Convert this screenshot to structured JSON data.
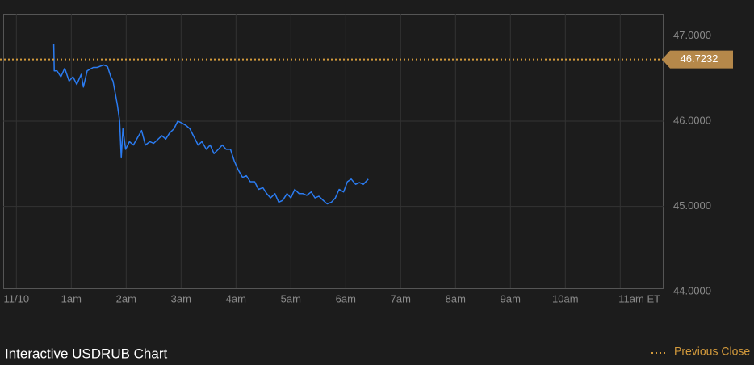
{
  "chart_data": {
    "type": "line",
    "title": "Interactive USDRUB Chart",
    "color": "#2b7cf2",
    "x": [
      0.68,
      0.69,
      0.74,
      0.81,
      0.88,
      0.96,
      1.03,
      1.1,
      1.18,
      1.22,
      1.29,
      1.4,
      1.47,
      1.59,
      1.66,
      1.72,
      1.76,
      1.84,
      1.88,
      1.91,
      1.94,
      1.99,
      2.06,
      2.13,
      2.21,
      2.28,
      2.35,
      2.43,
      2.5,
      2.65,
      2.72,
      2.79,
      2.87,
      2.94,
      3.01,
      3.09,
      3.16,
      3.24,
      3.31,
      3.38,
      3.46,
      3.53,
      3.6,
      3.68,
      3.75,
      3.82,
      3.9,
      3.97,
      4.04,
      4.12,
      4.19,
      4.26,
      4.34,
      4.41,
      4.49,
      4.56,
      4.63,
      4.71,
      4.78,
      4.85,
      4.93,
      5.0,
      5.07,
      5.15,
      5.22,
      5.29,
      5.37,
      5.44,
      5.51,
      5.59,
      5.66,
      5.74,
      5.81,
      5.88,
      5.96,
      6.03,
      6.1,
      6.18,
      6.25,
      6.32,
      6.41
    ],
    "values": [
      46.9,
      46.59,
      46.59,
      46.52,
      46.62,
      46.47,
      46.52,
      46.43,
      46.55,
      46.4,
      46.59,
      46.63,
      46.63,
      46.66,
      46.64,
      46.52,
      46.47,
      46.19,
      46.0,
      45.57,
      45.91,
      45.67,
      45.76,
      45.72,
      45.81,
      45.89,
      45.72,
      45.76,
      45.74,
      45.83,
      45.79,
      45.86,
      45.91,
      46.0,
      45.98,
      45.95,
      45.91,
      45.81,
      45.72,
      45.76,
      45.67,
      45.72,
      45.62,
      45.67,
      45.72,
      45.67,
      45.67,
      45.53,
      45.43,
      45.34,
      45.36,
      45.29,
      45.29,
      45.2,
      45.22,
      45.15,
      45.1,
      45.15,
      45.05,
      45.07,
      45.15,
      45.1,
      45.2,
      45.15,
      45.15,
      45.13,
      45.17,
      45.1,
      45.12,
      45.07,
      45.03,
      45.05,
      45.1,
      45.2,
      45.17,
      45.29,
      45.32,
      45.26,
      45.28,
      45.26,
      45.32
    ],
    "xlim": [
      -0.24,
      11.79
    ],
    "xticks": [
      {
        "value": 0,
        "label": "11/10"
      },
      {
        "value": 1,
        "label": "1am"
      },
      {
        "value": 2,
        "label": "2am"
      },
      {
        "value": 3,
        "label": "3am"
      },
      {
        "value": 4,
        "label": "4am"
      },
      {
        "value": 5,
        "label": "5am"
      },
      {
        "value": 6,
        "label": "6am"
      },
      {
        "value": 7,
        "label": "7am"
      },
      {
        "value": 8,
        "label": "8am"
      },
      {
        "value": 9,
        "label": "9am"
      },
      {
        "value": 10,
        "label": "10am"
      },
      {
        "value": 11,
        "label": "11am ET"
      }
    ],
    "ylim": [
      44.04,
      47.26
    ],
    "yticks": [
      {
        "value": 44,
        "label": "44.0000"
      },
      {
        "value": 45,
        "label": "45.0000"
      },
      {
        "value": 46,
        "label": "46.0000"
      },
      {
        "value": 47,
        "label": "47.0000"
      }
    ],
    "grid": true,
    "reference_line": {
      "name": "Previous Close",
      "value": 46.7232,
      "color": "#d39a3c"
    }
  }
}
